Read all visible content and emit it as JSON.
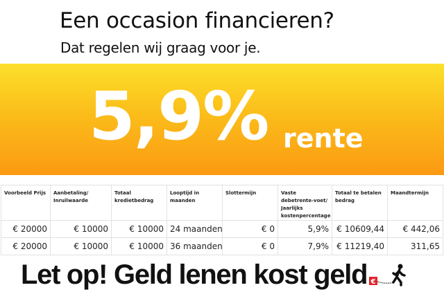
{
  "header": {
    "title": "Een occasion financieren?",
    "subtitle": "Dat regelen wij graag voor je."
  },
  "banner": {
    "rate": "5,9%",
    "rate_suffix": "rente",
    "gradient_colors": [
      "#fde02b",
      "#fb9a12"
    ]
  },
  "table": {
    "headers": [
      "Voorbeeld Prijs",
      "Aanbetaling/ Inruilwaarde",
      "Totaal kredietbedrag",
      "Looptijd in maanden",
      "Slottermijn",
      "Vaste debetrente-voet/ Jaarlijks kostenpercentage",
      "Totaal te betalen bedrag",
      "Maandtermijn"
    ],
    "rows": [
      [
        "€ 20000",
        "€ 10000",
        "€ 10000",
        "24 maanden",
        "€ 0",
        "5,9%",
        "€ 10609,44",
        "€ 442,06"
      ],
      [
        "€ 20000",
        "€ 10000",
        "€ 10000",
        "36 maanden",
        "€ 0",
        "7,9%",
        "€ 11219,40",
        "311,65"
      ]
    ]
  },
  "footer": {
    "warning": "Let op! Geld lenen kost geld",
    "logo": "euro-ball-and-chain-walking-man-icon",
    "logo_color": "#e0252b"
  }
}
